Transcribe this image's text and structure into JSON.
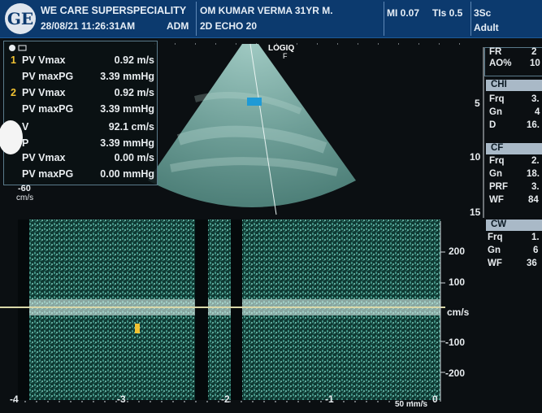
{
  "header": {
    "logo": "GE",
    "hospital": "WE CARE SUPERSPECIALITY",
    "datetime": "28/08/21 11:26:31AM",
    "operator": "ADM",
    "patient": "OM KUMAR VERMA 31YR M.",
    "exam": "2D ECHO 20",
    "mi": "MI 0.07",
    "tis": "TIs 0.5",
    "probe": "3Sc",
    "preset": "Adult"
  },
  "scan": {
    "brand": "LOGIQ",
    "focus_label": "F",
    "depth_marks": [
      "5",
      "10",
      "15"
    ]
  },
  "measurements": [
    {
      "num": "1",
      "label": "PV Vmax",
      "value": "0.92 m/s"
    },
    {
      "num": "",
      "label": "PV maxPG",
      "value": "3.39 mmHg"
    },
    {
      "num": "2",
      "label": "PV Vmax",
      "value": "0.92 m/s"
    },
    {
      "num": "",
      "label": "PV maxPG",
      "value": "3.39 mmHg"
    },
    {
      "num": "",
      "label": "V",
      "value": "92.1 cm/s"
    },
    {
      "num": "",
      "label": "P",
      "value": "3.39 mmHg"
    },
    {
      "num": "",
      "label": "PV Vmax",
      "value": "0.00 m/s"
    },
    {
      "num": "",
      "label": "PV maxPG",
      "value": "0.00 mmHg"
    }
  ],
  "color_scale": {
    "value": "-60",
    "unit": "cm/s"
  },
  "right_panel": {
    "top": [
      {
        "k": "FR",
        "v": "2"
      },
      {
        "k": "AO%",
        "v": "10"
      }
    ],
    "chi": {
      "title": "CHI",
      "rows": [
        {
          "k": "Frq",
          "v": "3."
        },
        {
          "k": "Gn",
          "v": "4"
        },
        {
          "k": "D",
          "v": "16."
        }
      ]
    },
    "cf": {
      "title": "CF",
      "rows": [
        {
          "k": "Frq",
          "v": "2."
        },
        {
          "k": "Gn",
          "v": "18."
        },
        {
          "k": "PRF",
          "v": "3."
        },
        {
          "k": "WF",
          "v": "84"
        }
      ]
    },
    "cw": {
      "title": "CW",
      "rows": [
        {
          "k": "Frq",
          "v": "1."
        },
        {
          "k": "Gn",
          "v": "6"
        },
        {
          "k": "WF",
          "v": "36"
        }
      ]
    }
  },
  "doppler": {
    "velocity_ticks": [
      "200",
      "100",
      "cm/s",
      "-100",
      "-200"
    ],
    "time_ticks": [
      "-4",
      "-3",
      "-2",
      "-1",
      "0"
    ],
    "sweep": "50 mm/s"
  },
  "colors": {
    "header": "#0c3a6e",
    "spectrum": "#5fa89a",
    "baseline": "#d9d7a8",
    "accent": "#f1c232"
  }
}
